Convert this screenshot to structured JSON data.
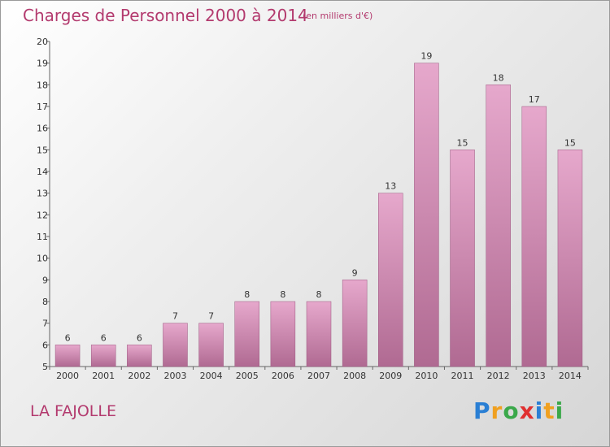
{
  "header": {
    "title": "Charges de Personnel 2000 à 2014",
    "subtitle": "(en milliers d'€)"
  },
  "footer": {
    "commune": "LA FAJOLLE",
    "brand": [
      "P",
      "r",
      "o",
      "x",
      "i",
      "t",
      "i"
    ],
    "brand_colors": [
      "#2a7fd4",
      "#f0a020",
      "#3aa84a",
      "#e03030",
      "#2a7fd4",
      "#f0a020",
      "#3aa84a"
    ]
  },
  "chart_data": {
    "type": "bar",
    "title": "Charges de Personnel 2000 à 2014",
    "subtitle": "(en milliers d'€)",
    "categories": [
      "2000",
      "2001",
      "2002",
      "2003",
      "2004",
      "2005",
      "2006",
      "2007",
      "2008",
      "2009",
      "2010",
      "2011",
      "2012",
      "2013",
      "2014"
    ],
    "values": [
      6,
      6,
      6,
      7,
      7,
      8,
      8,
      8,
      9,
      13,
      19,
      15,
      18,
      17,
      15
    ],
    "ylim": [
      5,
      20
    ],
    "yticks": [
      5,
      6,
      7,
      8,
      9,
      10,
      11,
      12,
      13,
      14,
      15,
      16,
      17,
      18,
      19,
      20
    ],
    "grid": false,
    "bar_color": "#cc6a9e",
    "xlabel": "",
    "ylabel": ""
  }
}
